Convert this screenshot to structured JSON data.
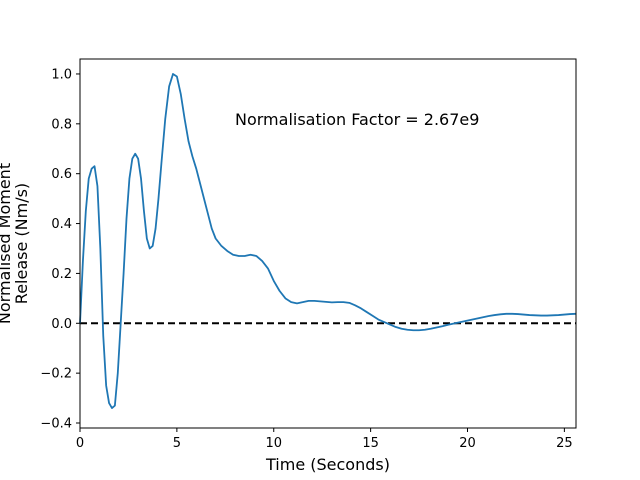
{
  "chart_data": {
    "type": "line",
    "title": "",
    "xlabel": "Time (Seconds)",
    "ylabel": [
      "Normalised Moment",
      "Release (Nm/s)"
    ],
    "xlim": [
      0,
      25.6
    ],
    "ylim": [
      -0.42,
      1.06
    ],
    "xticks": [
      0,
      5,
      10,
      15,
      20,
      25
    ],
    "yticks": [
      -0.4,
      -0.2,
      0.0,
      0.2,
      0.4,
      0.6,
      0.8,
      1.0
    ],
    "xtick_labels": [
      "0",
      "5",
      "10",
      "15",
      "20",
      "25"
    ],
    "ytick_labels": [
      "−0.4",
      "−0.2",
      "0.0",
      "0.2",
      "0.4",
      "0.6",
      "0.8",
      "1.0"
    ],
    "grid": false,
    "annotation": {
      "text": "Normalisation Factor = 2.67e9",
      "x": 8.0,
      "y": 0.82
    },
    "reference_line": {
      "y": 0.0,
      "style": "dashed",
      "color": "#000000"
    },
    "series": [
      {
        "color": "#1f77b4",
        "x": [
          0.0,
          0.15,
          0.3,
          0.45,
          0.6,
          0.75,
          0.9,
          1.05,
          1.2,
          1.35,
          1.5,
          1.65,
          1.8,
          1.95,
          2.1,
          2.25,
          2.4,
          2.55,
          2.7,
          2.85,
          3.0,
          3.15,
          3.3,
          3.45,
          3.6,
          3.75,
          3.9,
          4.05,
          4.2,
          4.4,
          4.6,
          4.8,
          5.0,
          5.2,
          5.4,
          5.6,
          5.8,
          6.0,
          6.2,
          6.4,
          6.6,
          6.8,
          7.0,
          7.3,
          7.6,
          7.9,
          8.2,
          8.5,
          8.8,
          9.1,
          9.4,
          9.7,
          10.0,
          10.3,
          10.6,
          10.9,
          11.2,
          11.5,
          11.8,
          12.1,
          12.4,
          12.7,
          13.0,
          13.3,
          13.6,
          13.9,
          14.2,
          14.5,
          14.8,
          15.1,
          15.4,
          15.7,
          16.0,
          16.3,
          16.6,
          16.9,
          17.2,
          17.5,
          17.8,
          18.1,
          18.4,
          18.7,
          19.0,
          19.3,
          19.6,
          19.9,
          20.2,
          20.5,
          20.8,
          21.1,
          21.4,
          21.7,
          22.0,
          22.3,
          22.6,
          22.9,
          23.2,
          23.5,
          23.8,
          24.1,
          24.4,
          24.7,
          25.0,
          25.3,
          25.6
        ],
        "y": [
          0.0,
          0.25,
          0.45,
          0.58,
          0.62,
          0.63,
          0.55,
          0.3,
          -0.05,
          -0.25,
          -0.32,
          -0.34,
          -0.33,
          -0.2,
          0.0,
          0.2,
          0.42,
          0.58,
          0.66,
          0.68,
          0.66,
          0.58,
          0.45,
          0.34,
          0.3,
          0.31,
          0.38,
          0.5,
          0.64,
          0.82,
          0.95,
          1.0,
          0.99,
          0.92,
          0.82,
          0.73,
          0.67,
          0.62,
          0.56,
          0.5,
          0.44,
          0.38,
          0.34,
          0.31,
          0.29,
          0.275,
          0.27,
          0.27,
          0.275,
          0.27,
          0.25,
          0.22,
          0.17,
          0.13,
          0.1,
          0.085,
          0.08,
          0.085,
          0.09,
          0.09,
          0.088,
          0.086,
          0.084,
          0.085,
          0.085,
          0.082,
          0.072,
          0.06,
          0.045,
          0.03,
          0.015,
          0.005,
          -0.005,
          -0.015,
          -0.022,
          -0.026,
          -0.028,
          -0.028,
          -0.026,
          -0.022,
          -0.017,
          -0.012,
          -0.006,
          -0.001,
          0.004,
          0.009,
          0.014,
          0.019,
          0.024,
          0.029,
          0.033,
          0.036,
          0.038,
          0.038,
          0.037,
          0.035,
          0.033,
          0.032,
          0.031,
          0.031,
          0.032,
          0.033,
          0.035,
          0.037,
          0.038
        ]
      }
    ]
  },
  "colors": {
    "line": "#1f77b4",
    "axes": "#000000",
    "background": "#ffffff"
  }
}
